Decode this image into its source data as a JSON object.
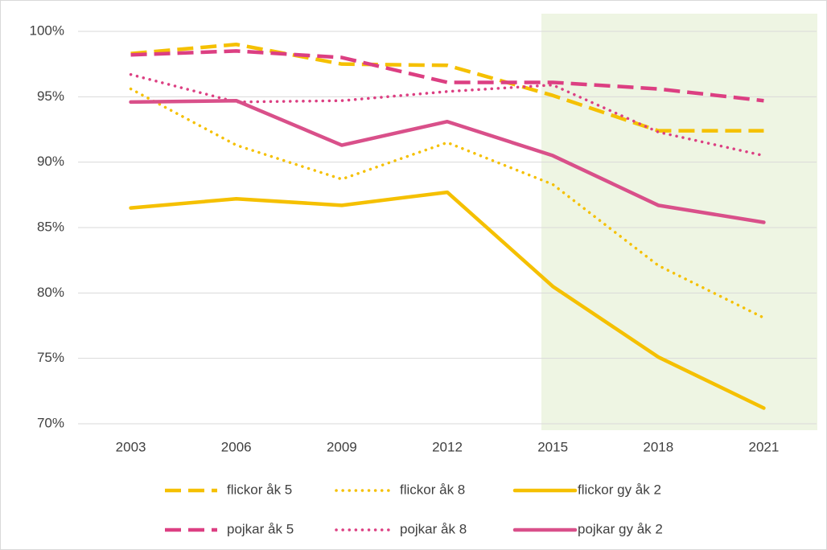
{
  "chart_data": {
    "type": "line",
    "categories": [
      "2003",
      "2006",
      "2009",
      "2012",
      "2015",
      "2018",
      "2021"
    ],
    "ylim": [
      70,
      100
    ],
    "yticks": [
      {
        "value": 70,
        "label": "70%"
      },
      {
        "value": 75,
        "label": "75%"
      },
      {
        "value": 80,
        "label": "80%"
      },
      {
        "value": 85,
        "label": "85%"
      },
      {
        "value": 90,
        "label": "90%"
      },
      {
        "value": 95,
        "label": "95%"
      },
      {
        "value": 100,
        "label": "100%"
      }
    ],
    "grid": true,
    "series": [
      {
        "name": "flickor åk 5",
        "color": "#f5c000",
        "line_style": "dashed",
        "values": [
          98.3,
          99.0,
          97.5,
          97.4,
          95.1,
          92.4,
          92.4
        ]
      },
      {
        "name": "flickor åk 8",
        "color": "#f5c000",
        "line_style": "dotted",
        "values": [
          95.6,
          91.3,
          88.7,
          91.5,
          88.3,
          82.1,
          78.1
        ]
      },
      {
        "name": "flickor gy åk 2",
        "color": "#f5c000",
        "line_style": "solid",
        "values": [
          86.5,
          87.2,
          86.7,
          87.7,
          80.5,
          75.1,
          71.2
        ]
      },
      {
        "name": "pojkar åk 5",
        "color": "#dc3f82",
        "line_style": "dashed",
        "values": [
          98.2,
          98.5,
          98.0,
          96.1,
          96.1,
          95.6,
          94.7
        ]
      },
      {
        "name": "pojkar åk 8",
        "color": "#dc3f82",
        "line_style": "dotted",
        "values": [
          96.7,
          94.6,
          94.7,
          95.4,
          95.9,
          92.3,
          90.5
        ]
      },
      {
        "name": "pojkar gy åk 2",
        "color": "#d9508a",
        "line_style": "solid",
        "values": [
          94.6,
          94.7,
          91.3,
          93.1,
          90.5,
          86.7,
          85.4
        ]
      }
    ]
  }
}
